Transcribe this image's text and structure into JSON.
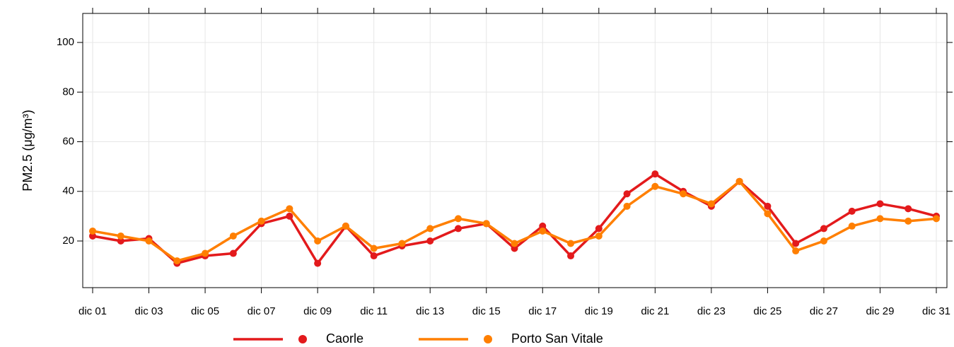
{
  "chart_data": {
    "type": "line",
    "y_label": "PM2.5 (μg/m³)",
    "categories": [
      "dic 01",
      null,
      "dic 03",
      null,
      "dic 05",
      null,
      "dic 07",
      null,
      "dic 09",
      null,
      "dic 11",
      null,
      "dic 13",
      null,
      "dic 15",
      null,
      "dic 17",
      null,
      "dic 19",
      null,
      "dic 21",
      null,
      "dic 23",
      null,
      "dic 25",
      null,
      "dic 27",
      null,
      "dic 29",
      null,
      "dic 31"
    ],
    "series": [
      {
        "name": "Caorle",
        "color": "#e31a1c",
        "values": [
          22,
          20,
          21,
          11,
          14,
          15,
          27,
          30,
          11,
          26,
          14,
          18,
          20,
          25,
          27,
          17,
          26,
          14,
          25,
          39,
          47,
          40,
          34,
          44,
          34,
          19,
          25,
          32,
          35,
          33,
          30
        ]
      },
      {
        "name": "Porto San Vitale",
        "color": "#ff7f00",
        "values": [
          24,
          22,
          20,
          12,
          15,
          22,
          28,
          33,
          20,
          26,
          17,
          19,
          25,
          29,
          27,
          19,
          24,
          19,
          22,
          34,
          42,
          39,
          35,
          44,
          31,
          16,
          20,
          26,
          29,
          28,
          29
        ]
      }
    ],
    "ylim": [
      1.2,
      111.7
    ],
    "yticks": [
      20,
      40,
      60,
      80,
      100
    ],
    "grid": true,
    "legend": "bottom"
  }
}
